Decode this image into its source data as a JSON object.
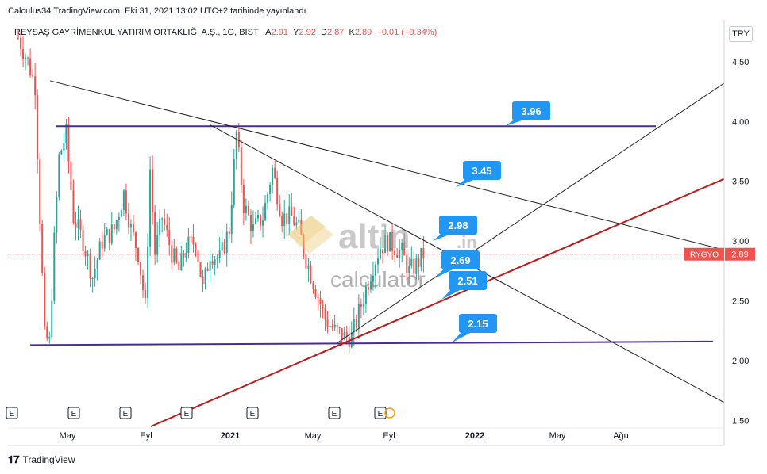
{
  "header": {
    "publish_line": "Calculus34 TradingView.com, Eki 31, 2021 13:02 UTC+2 tarihinde yayınlandı",
    "instrument": "REYSAŞ GAYRİMENKUL YATIRIM ORTAKLIĞI A.Ş., 1G, BIST",
    "ohlc": {
      "a_label": "A",
      "a": "2.91",
      "y_label": "Y",
      "y": "2.92",
      "d_label": "D",
      "d": "2.87",
      "k_label": "K",
      "k": "2.89",
      "change": "−0.01 (−0.34%)"
    },
    "currency": "TRY"
  },
  "footer": {
    "brand": "TradingView"
  },
  "watermark": {
    "main": "altin",
    "sub": ".in",
    "second": "calculator"
  },
  "colors": {
    "up": "#26a69a",
    "down": "#ef5350",
    "support": "#4a2e8f",
    "trend_red": "#b71c1c",
    "label": "#2196f3",
    "price_tag": "#ef5350"
  },
  "chart_data": {
    "type": "candlestick",
    "symbol_tag": "RYGYO",
    "last_price": 2.89,
    "ylim": [
      1.45,
      4.85
    ],
    "y_ticks": [
      "4.50",
      "4.00",
      "3.50",
      "3.00",
      "2.50",
      "2.00",
      "1.50"
    ],
    "x_ticks": [
      "May",
      "Eyl",
      "2021",
      "May",
      "Eyl",
      "2022",
      "May",
      "Ağu"
    ],
    "earnings_markers": [
      "E",
      "E",
      "E",
      "E",
      "E",
      "E",
      "E"
    ],
    "annotations": [
      "3.96",
      "3.45",
      "2.98",
      "2.69",
      "2.51",
      "2.15"
    ],
    "horizontal_levels": [
      3.96,
      2.15
    ],
    "price_path": [
      [
        0,
        4.7
      ],
      [
        4,
        4.5
      ],
      [
        7,
        4.3
      ],
      [
        9,
        3.2
      ],
      [
        11,
        2.2
      ],
      [
        13,
        2.15
      ],
      [
        15,
        3.0
      ],
      [
        17,
        3.7
      ],
      [
        20,
        3.9
      ],
      [
        23,
        3.2
      ],
      [
        27,
        3.0
      ],
      [
        31,
        2.7
      ],
      [
        35,
        3.0
      ],
      [
        40,
        3.1
      ],
      [
        44,
        3.4
      ],
      [
        47,
        3.1
      ],
      [
        50,
        2.9
      ],
      [
        53,
        2.45
      ],
      [
        55,
        3.6
      ],
      [
        57,
        2.9
      ],
      [
        60,
        3.2
      ],
      [
        64,
        2.9
      ],
      [
        67,
        2.75
      ],
      [
        70,
        2.95
      ],
      [
        74,
        3.0
      ],
      [
        77,
        2.6
      ],
      [
        80,
        2.9
      ],
      [
        84,
        2.85
      ],
      [
        88,
        3.1
      ],
      [
        91,
        3.9
      ],
      [
        94,
        3.3
      ],
      [
        98,
        3.1
      ],
      [
        102,
        3.2
      ],
      [
        106,
        3.6
      ],
      [
        110,
        3.2
      ],
      [
        114,
        3.2
      ],
      [
        117,
        3.1
      ],
      [
        120,
        2.85
      ],
      [
        124,
        2.6
      ],
      [
        128,
        2.35
      ],
      [
        132,
        2.25
      ],
      [
        136,
        2.2
      ],
      [
        139,
        2.2
      ],
      [
        142,
        2.4
      ],
      [
        145,
        2.6
      ],
      [
        148,
        2.8
      ],
      [
        151,
        2.95
      ],
      [
        154,
        3.0
      ],
      [
        157,
        2.95
      ],
      [
        160,
        2.9
      ],
      [
        163,
        2.75
      ],
      [
        166,
        2.8
      ],
      [
        169,
        2.89
      ]
    ]
  }
}
